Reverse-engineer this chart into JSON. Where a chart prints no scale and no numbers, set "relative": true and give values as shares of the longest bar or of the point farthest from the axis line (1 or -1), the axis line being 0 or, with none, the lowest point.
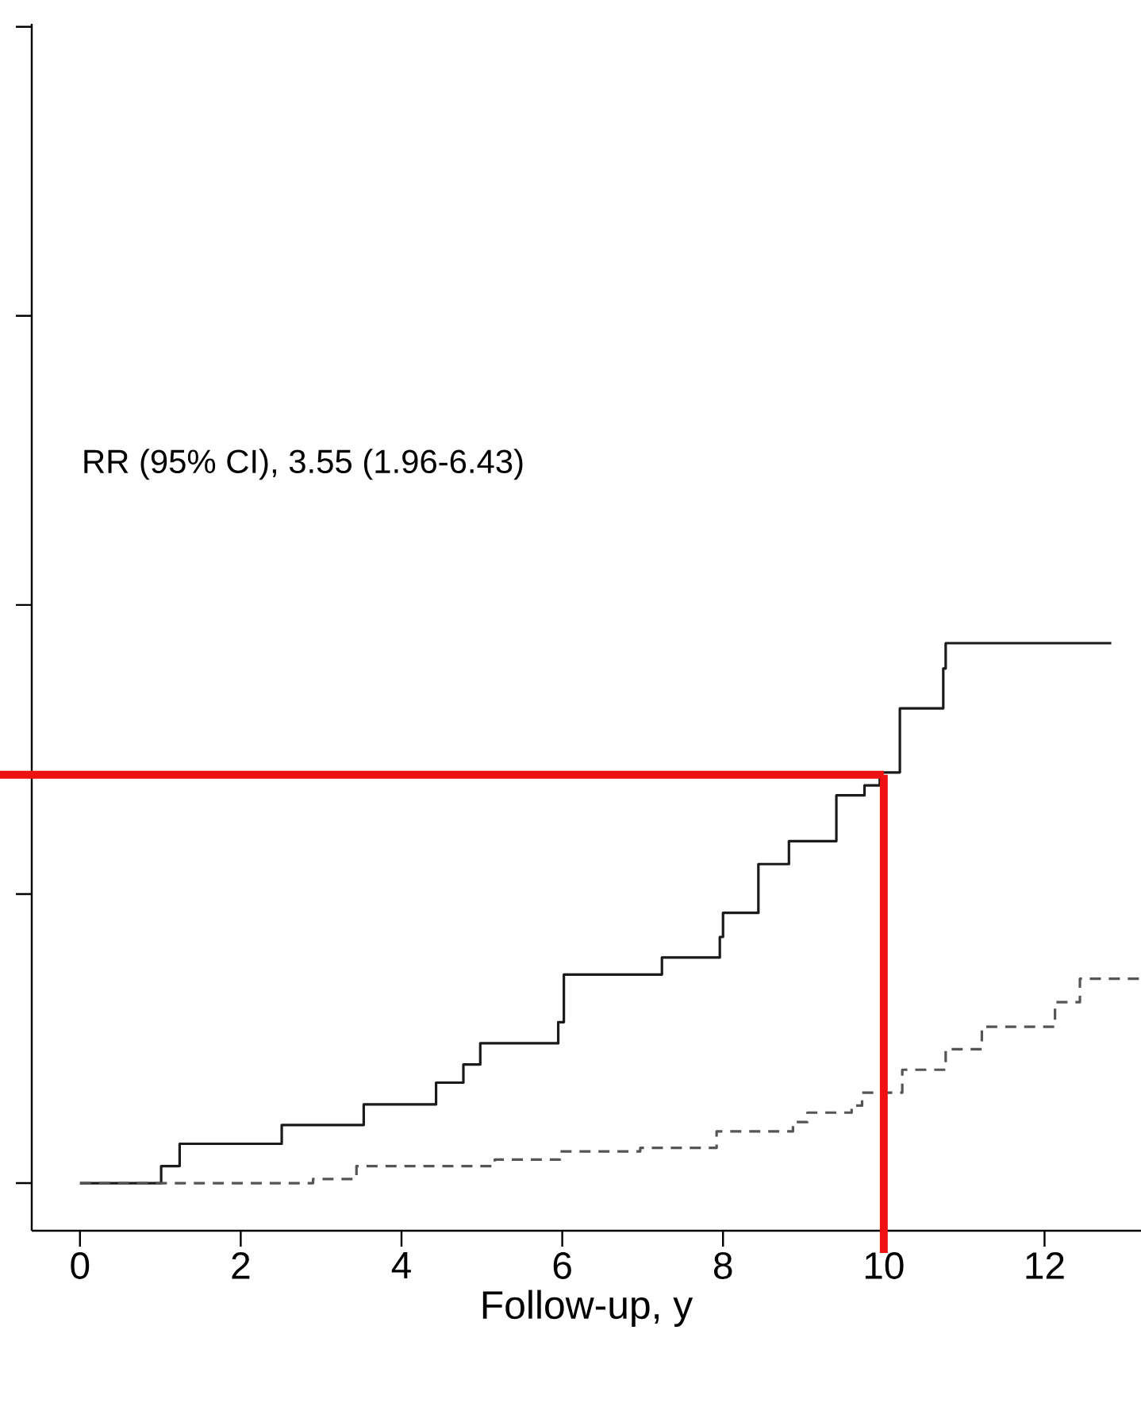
{
  "chart_data": {
    "type": "step",
    "xlabel": "Follow-up, y",
    "relative": true,
    "xlim": [
      -0.6,
      13.2
    ],
    "xticks": [
      0,
      2,
      4,
      6,
      8,
      10,
      12
    ],
    "annotations": [
      "RR (95% CI), 3.55 (1.96-6.43)"
    ],
    "grid": false,
    "series": [
      {
        "color": "#1a1a1a",
        "line_style": "solid",
        "x": [
          0,
          1.01,
          1.24,
          2.51,
          3.53,
          4.43,
          4.77,
          4.98,
          5.95,
          6.02,
          7.24,
          7.96,
          8.0,
          8.44,
          8.82,
          9.41,
          9.76,
          9.95,
          10.2,
          10.74,
          10.77,
          12.83
        ],
        "values": [
          0.081,
          0.11,
          0.148,
          0.18,
          0.215,
          0.252,
          0.283,
          0.319,
          0.355,
          0.436,
          0.465,
          0.5,
          0.541,
          0.624,
          0.663,
          0.741,
          0.758,
          0.78,
          0.889,
          0.957,
          1.0,
          1.0
        ]
      },
      {
        "color": "#555555",
        "line_style": "dashed",
        "x": [
          0,
          2.9,
          3.44,
          5.16,
          5.97,
          6.97,
          7.92,
          8.87,
          9.05,
          9.6,
          9.73,
          10.23,
          10.77,
          11.22,
          12.13,
          12.44,
          13.19
        ],
        "values": [
          0.081,
          0.088,
          0.11,
          0.121,
          0.135,
          0.141,
          0.169,
          0.185,
          0.201,
          0.213,
          0.235,
          0.274,
          0.309,
          0.347,
          0.389,
          0.429,
          0.429
        ]
      }
    ],
    "ref_lines": [
      {
        "axis": "x",
        "value": 10,
        "color": "#ee1111"
      },
      {
        "axis": "y",
        "value": 0.776,
        "color": "#ee1111"
      }
    ]
  }
}
